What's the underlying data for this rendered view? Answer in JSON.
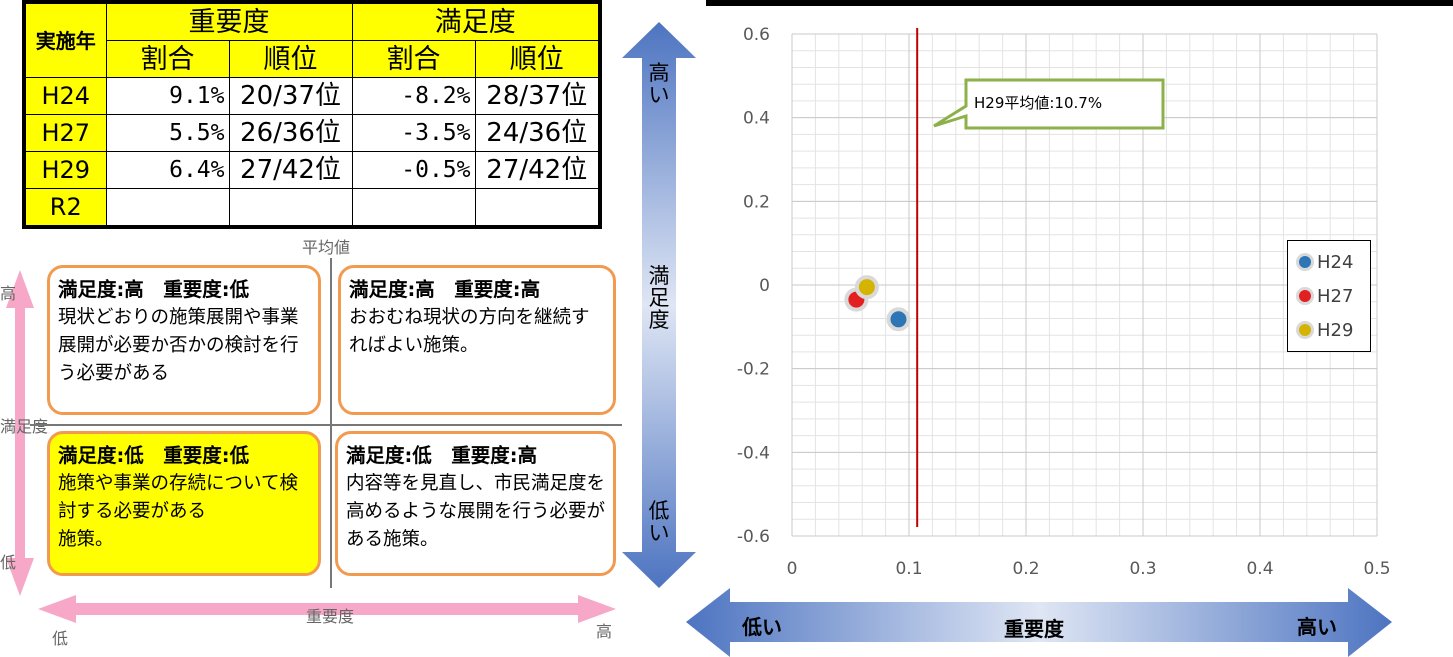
{
  "table": {
    "year_header": "実施年",
    "importance_header": "重要度",
    "satisfaction_header": "満足度",
    "ratio_label": "割合",
    "rank_label": "順位",
    "rows": [
      {
        "year": "H24",
        "imp_ratio": "9.1%",
        "imp_rank": "20/37位",
        "sat_ratio": "-8.2%",
        "sat_rank": "28/37位"
      },
      {
        "year": "H27",
        "imp_ratio": "5.5%",
        "imp_rank": "26/36位",
        "sat_ratio": "-3.5%",
        "sat_rank": "24/36位"
      },
      {
        "year": "H29",
        "imp_ratio": "6.4%",
        "imp_rank": "27/42位",
        "sat_ratio": "-0.5%",
        "sat_rank": "27/42位"
      },
      {
        "year": "R2",
        "imp_ratio": "",
        "imp_rank": "",
        "sat_ratio": "",
        "sat_rank": ""
      }
    ]
  },
  "matrix": {
    "average_label": "平均値",
    "y_label": "満足度",
    "x_label": "重要度",
    "high": "高",
    "low": "低",
    "quadrants": {
      "top_left": {
        "title": "満足度:高　重要度:低",
        "text": "現状どおりの施策展開や事業展開が必要か否かの検討を行う必要がある"
      },
      "top_right": {
        "title": "満足度:高　重要度:高",
        "text": "おおむね現状の方向を継続すればよい施策。"
      },
      "bottom_left": {
        "title": "満足度:低　重要度:低",
        "text": "施策や事業の存続について検討する必要がある\n施策。"
      },
      "bottom_right": {
        "title": "満足度:低　重要度:高",
        "text": "内容等を見直し、市民満足度を高めるような展開を行う必要がある施策。"
      }
    }
  },
  "vertical_arrow": {
    "high": "高い",
    "mid": "満足度",
    "low": "低い"
  },
  "horizontal_arrow": {
    "low": "低い",
    "mid": "重要度",
    "high": "高い"
  },
  "colors": {
    "h24": "#2e75b6",
    "h27": "#e32020",
    "h29": "#d4b400",
    "avg_line": "#c00000",
    "callout_border": "#8db04a",
    "highlight": "#ffff00",
    "quadrant_border": "#f29b50"
  },
  "chart_data": {
    "type": "scatter",
    "xlim": [
      0,
      0.5
    ],
    "ylim": [
      -0.6,
      0.6
    ],
    "x_ticks": [
      "0",
      "0.1",
      "0.2",
      "0.3",
      "0.4",
      "0.5"
    ],
    "y_ticks": [
      "0.6",
      "0.4",
      "0.2",
      "0",
      "-0.2",
      "-0.4",
      "-0.6"
    ],
    "grid": true,
    "legend_position": "right",
    "series": [
      {
        "name": "H24",
        "x": 0.091,
        "y": -0.082
      },
      {
        "name": "H27",
        "x": 0.055,
        "y": -0.035
      },
      {
        "name": "H29",
        "x": 0.064,
        "y": -0.005
      }
    ],
    "reference_line": {
      "x": 0.107,
      "label": "H29平均値:10.7%"
    }
  }
}
